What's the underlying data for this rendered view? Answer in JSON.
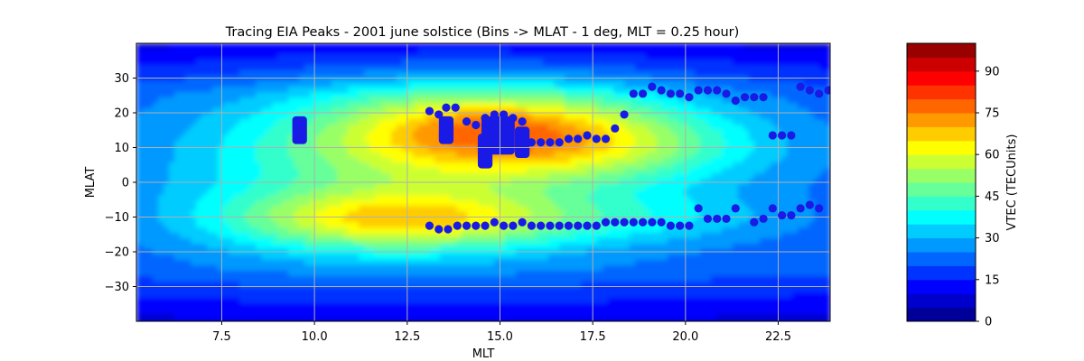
{
  "chart_data": {
    "type": "heatmap",
    "title": "Tracing EIA Peaks - 2001 june solstice (Bins -> MLAT - 1 deg, MLT = 0.25 hour)",
    "xlabel": "MLT",
    "ylabel": "MLAT",
    "xlim": [
      5.2,
      23.9
    ],
    "ylim": [
      -40,
      40
    ],
    "xticks": [
      7.5,
      10.0,
      12.5,
      15.0,
      17.5,
      20.0,
      22.5
    ],
    "xtick_labels": [
      "7.5",
      "10.0",
      "12.5",
      "15.0",
      "17.5",
      "20.0",
      "22.5"
    ],
    "yticks": [
      -30,
      -20,
      -10,
      0,
      10,
      20,
      30
    ],
    "ytick_labels": [
      "−30",
      "−20",
      "−10",
      "0",
      "10",
      "20",
      "30"
    ],
    "grid": true,
    "colormap": "jet",
    "colorbar": {
      "label": "VTEC (TECUnits)",
      "min": 0,
      "max": 100,
      "levels": 20,
      "ticks": [
        0,
        15,
        30,
        45,
        60,
        75,
        90
      ],
      "tick_labels": [
        "0",
        "15",
        "30",
        "45",
        "60",
        "75",
        "90"
      ]
    },
    "tec_field": {
      "description_source": "estimated from contour colors",
      "background": 20,
      "blobs": [
        {
          "x": 15.0,
          "y": 14,
          "sx": 3.6,
          "sy": 10,
          "amp": 36
        },
        {
          "x": 12.5,
          "y": -11,
          "sx": 3.2,
          "sy": 6,
          "amp": 34
        },
        {
          "x": 14.6,
          "y": 17,
          "sx": 2.0,
          "sy": 5,
          "amp": 8
        },
        {
          "x": 18.0,
          "y": 10,
          "sx": 3.0,
          "sy": 7,
          "amp": 12
        },
        {
          "x": 10.5,
          "y": 2,
          "sx": 3.5,
          "sy": 16,
          "amp": 10
        },
        {
          "x": 19.5,
          "y": -10,
          "sx": 2.5,
          "sy": 5,
          "amp": 8
        },
        {
          "x": 14.0,
          "y": 2,
          "sx": 6.0,
          "sy": 22,
          "amp": 10
        }
      ]
    },
    "peaks": {
      "marker_color": "#1a1ae6",
      "north": {
        "x": [
          13.1,
          13.35,
          13.55,
          13.8,
          14.1,
          14.35,
          14.6,
          14.85,
          15.1,
          15.35,
          15.6,
          15.85,
          16.1,
          16.35,
          16.6,
          16.85,
          17.1,
          17.35,
          17.6,
          17.85,
          18.1,
          18.35,
          18.6,
          18.85,
          19.1,
          19.35,
          19.6,
          19.85,
          20.1,
          20.35,
          20.6,
          20.85,
          21.1,
          21.35,
          21.6,
          21.85,
          22.1,
          22.35,
          22.6,
          22.85,
          23.1,
          23.35,
          23.6,
          23.85
        ],
        "y": [
          20.5,
          19.5,
          21.5,
          21.5,
          17.5,
          16.5,
          18.5,
          19.5,
          19.5,
          18.5,
          17.5,
          11.5,
          11.5,
          11.5,
          11.5,
          12.5,
          12.5,
          13.5,
          12.5,
          12.5,
          15.5,
          19.5,
          25.5,
          25.5,
          27.5,
          26.5,
          25.5,
          25.5,
          24.5,
          26.5,
          26.5,
          26.5,
          25.5,
          23.5,
          24.5,
          24.5,
          24.5,
          13.5,
          13.5,
          13.5,
          27.5,
          26.5,
          25.5,
          26.5
        ]
      },
      "south": {
        "x": [
          13.1,
          13.35,
          13.6,
          13.85,
          14.1,
          14.35,
          14.6,
          14.85,
          15.1,
          15.35,
          15.6,
          15.85,
          16.1,
          16.35,
          16.6,
          16.85,
          17.1,
          17.35,
          17.6,
          17.85,
          18.1,
          18.35,
          18.6,
          18.85,
          19.1,
          19.35,
          19.6,
          19.85,
          20.1,
          20.35,
          20.6,
          20.85,
          21.1,
          21.35,
          21.85,
          22.1,
          22.35,
          22.6,
          22.85,
          23.1,
          23.35,
          23.6
        ],
        "y": [
          -12.5,
          -13.5,
          -13.5,
          -12.5,
          -12.5,
          -12.5,
          -12.5,
          -11.5,
          -12.5,
          -12.5,
          -11.5,
          -12.5,
          -12.5,
          -12.5,
          -12.5,
          -12.5,
          -12.5,
          -12.5,
          -12.5,
          -11.5,
          -11.5,
          -11.5,
          -11.5,
          -11.5,
          -11.5,
          -11.5,
          -12.5,
          -12.5,
          -12.5,
          -7.5,
          -10.5,
          -10.5,
          -10.5,
          -7.5,
          -11.5,
          -10.5,
          -7.5,
          -9.5,
          -9.5,
          -7.5,
          -6.5,
          -7.5
        ]
      },
      "streaks": [
        {
          "x": 9.6,
          "y_from": 11,
          "y_to": 19
        },
        {
          "x": 13.55,
          "y_from": 11,
          "y_to": 19
        },
        {
          "x": 14.6,
          "y_from": 4,
          "y_to": 14
        },
        {
          "x_from": 14.6,
          "x_to": 15.3,
          "y_from": 8,
          "y_to": 19
        },
        {
          "x": 15.6,
          "y_from": 7,
          "y_to": 16
        }
      ]
    }
  }
}
